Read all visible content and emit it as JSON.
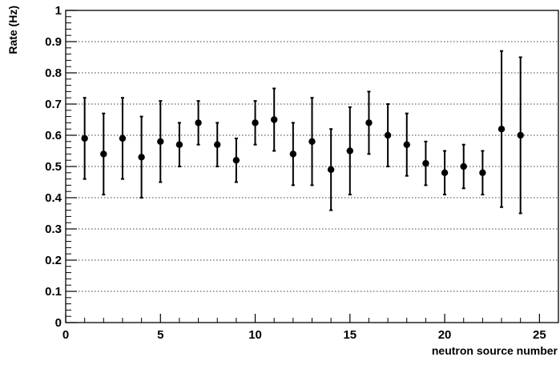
{
  "chart_data": {
    "type": "scatter",
    "title": "",
    "xlabel": "neutron source number",
    "ylabel": "Rate (Hz)",
    "xlim": [
      0,
      26
    ],
    "ylim": [
      0,
      1
    ],
    "x_ticks": [
      0,
      5,
      10,
      15,
      20,
      25
    ],
    "x_tick_labels": [
      "0",
      "5",
      "10",
      "15",
      "20",
      "25"
    ],
    "y_ticks": [
      0,
      0.1,
      0.2,
      0.3,
      0.4,
      0.5,
      0.6,
      0.7,
      0.8,
      0.9,
      1
    ],
    "y_tick_labels": [
      "0",
      "0.1",
      "0.2",
      "0.3",
      "0.4",
      "0.5",
      "0.6",
      "0.7",
      "0.8",
      "0.9",
      "1"
    ],
    "grid": {
      "horizontal": true,
      "vertical": false,
      "style": "dotted"
    },
    "legend": "none",
    "marker_color": "#000000",
    "series": [
      {
        "x": [
          1,
          2,
          3,
          4,
          5,
          6,
          7,
          8,
          9,
          10,
          11,
          12,
          13,
          14,
          15,
          16,
          17,
          18,
          19,
          20,
          21,
          22,
          23,
          24
        ],
        "y": [
          0.59,
          0.54,
          0.59,
          0.53,
          0.58,
          0.57,
          0.64,
          0.57,
          0.52,
          0.64,
          0.65,
          0.54,
          0.58,
          0.49,
          0.55,
          0.64,
          0.6,
          0.57,
          0.51,
          0.48,
          0.5,
          0.48,
          0.62,
          0.6
        ],
        "y_low": [
          0.46,
          0.41,
          0.46,
          0.4,
          0.45,
          0.5,
          0.57,
          0.5,
          0.45,
          0.57,
          0.55,
          0.44,
          0.44,
          0.36,
          0.41,
          0.54,
          0.5,
          0.47,
          0.44,
          0.41,
          0.43,
          0.41,
          0.37,
          0.35
        ],
        "y_high": [
          0.72,
          0.67,
          0.72,
          0.66,
          0.71,
          0.64,
          0.71,
          0.64,
          0.59,
          0.71,
          0.75,
          0.64,
          0.72,
          0.62,
          0.69,
          0.74,
          0.7,
          0.67,
          0.58,
          0.55,
          0.57,
          0.55,
          0.87,
          0.85
        ]
      }
    ]
  }
}
